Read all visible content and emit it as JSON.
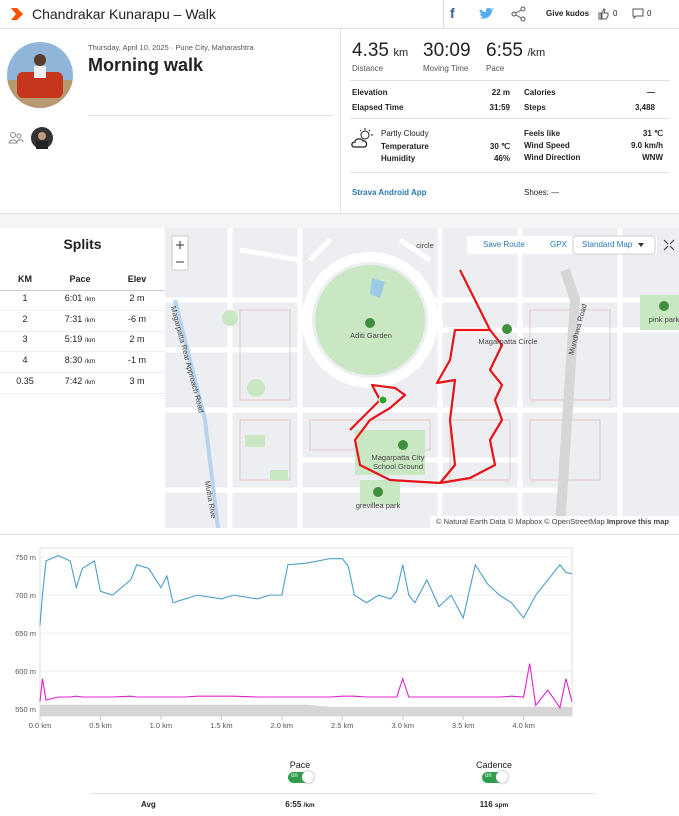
{
  "header": {
    "title": "Chandrakar Kunarapu – Walk",
    "kudos": "Give kudos",
    "kudos_count": "0",
    "comment_count": "0"
  },
  "activity": {
    "date": "Thursday, April 10, 2025 · Pune City, Maharashtra",
    "name": "Morning walk"
  },
  "stats": {
    "primary": [
      {
        "value": "4.35",
        "unit": "km",
        "label": "Distance"
      },
      {
        "value": "30:09",
        "label": "Moving Time"
      },
      {
        "value": "6:55",
        "unit": "/km",
        "label": "Pace"
      }
    ],
    "details_left": [
      [
        "Elevation",
        "22 m"
      ],
      [
        "Elapsed Time",
        "31:59"
      ]
    ],
    "details_right": [
      [
        "Calories",
        "—"
      ],
      [
        "Steps",
        "3,488"
      ]
    ],
    "weather": {
      "condition": "Partly Cloudy",
      "rows_left": [
        [
          "Temperature",
          "30 ℃"
        ],
        [
          "Humidity",
          "46%"
        ]
      ],
      "rows_right": [
        [
          "Feels like",
          "31 ℃"
        ],
        [
          "Wind Speed",
          "9.0 km/h"
        ],
        [
          "Wind Direction",
          "WNW"
        ]
      ]
    },
    "device": "Strava Android App",
    "shoes": "Shoes: —"
  },
  "splits": {
    "title": "Splits",
    "columns": [
      "KM",
      "Pace",
      "Elev"
    ],
    "rows": [
      {
        "km": "1",
        "pace": "6:01",
        "pace_unit": "/km",
        "elev": "2 m"
      },
      {
        "km": "2",
        "pace": "7:31",
        "pace_unit": "/km",
        "elev": "-6 m"
      },
      {
        "km": "3",
        "pace": "5:19",
        "pace_unit": "/km",
        "elev": "2 m"
      },
      {
        "km": "4",
        "pace": "8:30",
        "pace_unit": "/km",
        "elev": "-1 m"
      },
      {
        "km": "0.35",
        "pace": "7:42",
        "pace_unit": "/km",
        "elev": "3 m"
      }
    ]
  },
  "map": {
    "buttons": {
      "save_route": "Save Route",
      "gpx": "GPX",
      "map_style": "Standard Map"
    },
    "labels": [
      "Aditi Garden",
      "Magarpatta Circle",
      "Magarpatta City School Ground",
      "grevillea park",
      "pink park",
      "Mundhwa Road",
      "Magarpatta Rear Approach Road",
      "Mutha Rive",
      "circle"
    ],
    "attribution": "© Natural Earth Data © Mapbox © OpenStreetMap",
    "improve": "Improve this map"
  },
  "chart_data": {
    "type": "line",
    "x": [
      0,
      0.02,
      0.05,
      0.15,
      0.25,
      0.3,
      0.35,
      0.45,
      0.5,
      0.6,
      0.75,
      0.8,
      0.9,
      1.0,
      1.05,
      1.1,
      1.2,
      1.3,
      1.5,
      1.6,
      1.8,
      1.9,
      2.0,
      2.05,
      2.2,
      2.4,
      2.5,
      2.55,
      2.6,
      2.7,
      2.8,
      2.9,
      2.95,
      3.0,
      3.05,
      3.1,
      3.2,
      3.3,
      3.4,
      3.5,
      3.6,
      3.7,
      3.8,
      3.9,
      4.0,
      4.05,
      4.1,
      4.2,
      4.3,
      4.35,
      4.4
    ],
    "series": [
      {
        "color": "#d6d6d6",
        "area": true,
        "values": [
          556,
          556,
          556,
          556,
          556,
          556,
          556,
          556,
          556,
          556,
          556,
          556,
          556,
          556,
          556,
          556,
          556,
          556,
          556,
          556,
          556,
          556,
          556,
          556,
          556,
          553,
          553,
          553,
          553,
          553,
          553,
          553,
          553,
          553,
          553,
          553,
          553,
          553,
          553,
          553,
          553,
          553,
          553,
          553,
          553,
          553,
          553,
          553,
          553,
          553,
          553
        ]
      },
      {
        "color": "#4a9fc9",
        "values": [
          660,
          700,
          745,
          752,
          745,
          710,
          735,
          745,
          705,
          700,
          720,
          740,
          735,
          710,
          725,
          690,
          695,
          700,
          695,
          700,
          695,
          700,
          700,
          740,
          742,
          748,
          748,
          738,
          700,
          690,
          700,
          695,
          705,
          740,
          700,
          690,
          720,
          685,
          700,
          670,
          740,
          715,
          700,
          690,
          670,
          685,
          700,
          720,
          740,
          730,
          728
        ]
      },
      {
        "color": "#e020d0",
        "values": [
          560,
          590,
          562,
          566,
          566,
          567,
          566,
          566,
          566,
          566,
          567,
          566,
          566,
          566,
          566,
          566,
          566,
          567,
          567,
          567,
          566,
          566,
          566,
          566,
          566,
          566,
          567,
          567,
          567,
          566,
          566,
          566,
          566,
          590,
          566,
          566,
          566,
          566,
          566,
          566,
          566,
          566,
          566,
          567,
          566,
          610,
          555,
          575,
          552,
          590,
          560
        ]
      }
    ],
    "xlim": [
      0,
      4.4
    ],
    "ylim": [
      541,
      762
    ],
    "xticks": [
      {
        "value": 0,
        "label": "0.0 km"
      },
      {
        "value": 0.5,
        "label": "0.5 km"
      },
      {
        "value": 1,
        "label": "1.0 km"
      },
      {
        "value": 1.5,
        "label": "1.5 km"
      },
      {
        "value": 2,
        "label": "2.0 km"
      },
      {
        "value": 2.5,
        "label": "2.5 km"
      },
      {
        "value": 3,
        "label": "3.0 km"
      },
      {
        "value": 3.5,
        "label": "3.5 km"
      },
      {
        "value": 4,
        "label": "4.0 km"
      }
    ],
    "yticks": [
      {
        "value": 550,
        "label": "550 m"
      },
      {
        "value": 600,
        "label": "600 m"
      },
      {
        "value": 650,
        "label": "650 m"
      },
      {
        "value": 700,
        "label": "700 m"
      },
      {
        "value": 750,
        "label": "750 m"
      }
    ],
    "grid": true
  },
  "footer": {
    "columns": [
      "Pace",
      "Cadence"
    ],
    "toggle": "on",
    "avg_label": "Avg",
    "avg": [
      {
        "value": "6:55",
        "unit": "/km"
      },
      {
        "value": "116",
        "unit": "spm"
      }
    ]
  }
}
